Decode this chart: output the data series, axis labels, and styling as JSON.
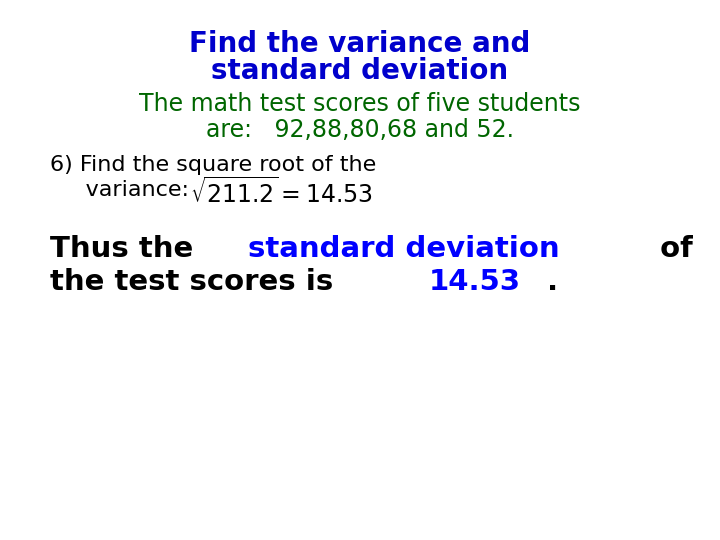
{
  "title_line1": "Find the variance and",
  "title_line2": "standard deviation",
  "title_color": "#0000CC",
  "subtitle_line1": "The math test scores of five students",
  "subtitle_line2": "are:   92,88,80,68 and 52.",
  "subtitle_color": "#006600",
  "step6_line1": "6) Find the square root of the",
  "step6_line2_prefix": "     variance: ",
  "step6_color": "#000000",
  "conclusion_black": "#000000",
  "conclusion_blue": "#0000FF",
  "bg_color": "#FFFFFF",
  "title_fontsize": 20,
  "subtitle_fontsize": 17,
  "step6_fontsize": 16,
  "conclusion_fontsize": 21
}
